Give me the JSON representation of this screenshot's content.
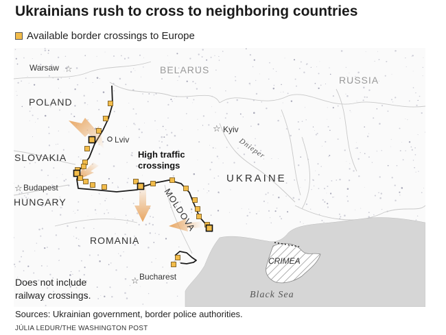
{
  "title": "Ukrainians rush to cross to neighboring countries",
  "legend": {
    "label": "Available border crossings to Europe",
    "color": "#f2bc4a"
  },
  "map": {
    "countries": [
      "BELARUS",
      "RUSSIA",
      "POLAND",
      "SLOVAKIA",
      "HUNGARY",
      "ROMANIA",
      "MOLDOVA",
      "UKRAINE"
    ],
    "cities": [
      "Warsaw",
      "Lviv",
      "Kyiv",
      "Budapest",
      "Bucharest"
    ],
    "river": "Dnieper",
    "crimea": "CRIMEA",
    "sea": "Black Sea",
    "callout": [
      "High traffic",
      "crossings"
    ],
    "note": [
      "Does not include",
      "railway crossings."
    ]
  },
  "footer": {
    "sources": "Sources: Ukrainian government, border police authorities.",
    "credit": "JÚLIA LEDUR/THE WASHINGTON POST"
  },
  "colors": {
    "crossing": "#f2bc4a",
    "arrow": "#e8a560",
    "sea": "#d6d6d6",
    "border": "#1a1a1a"
  }
}
